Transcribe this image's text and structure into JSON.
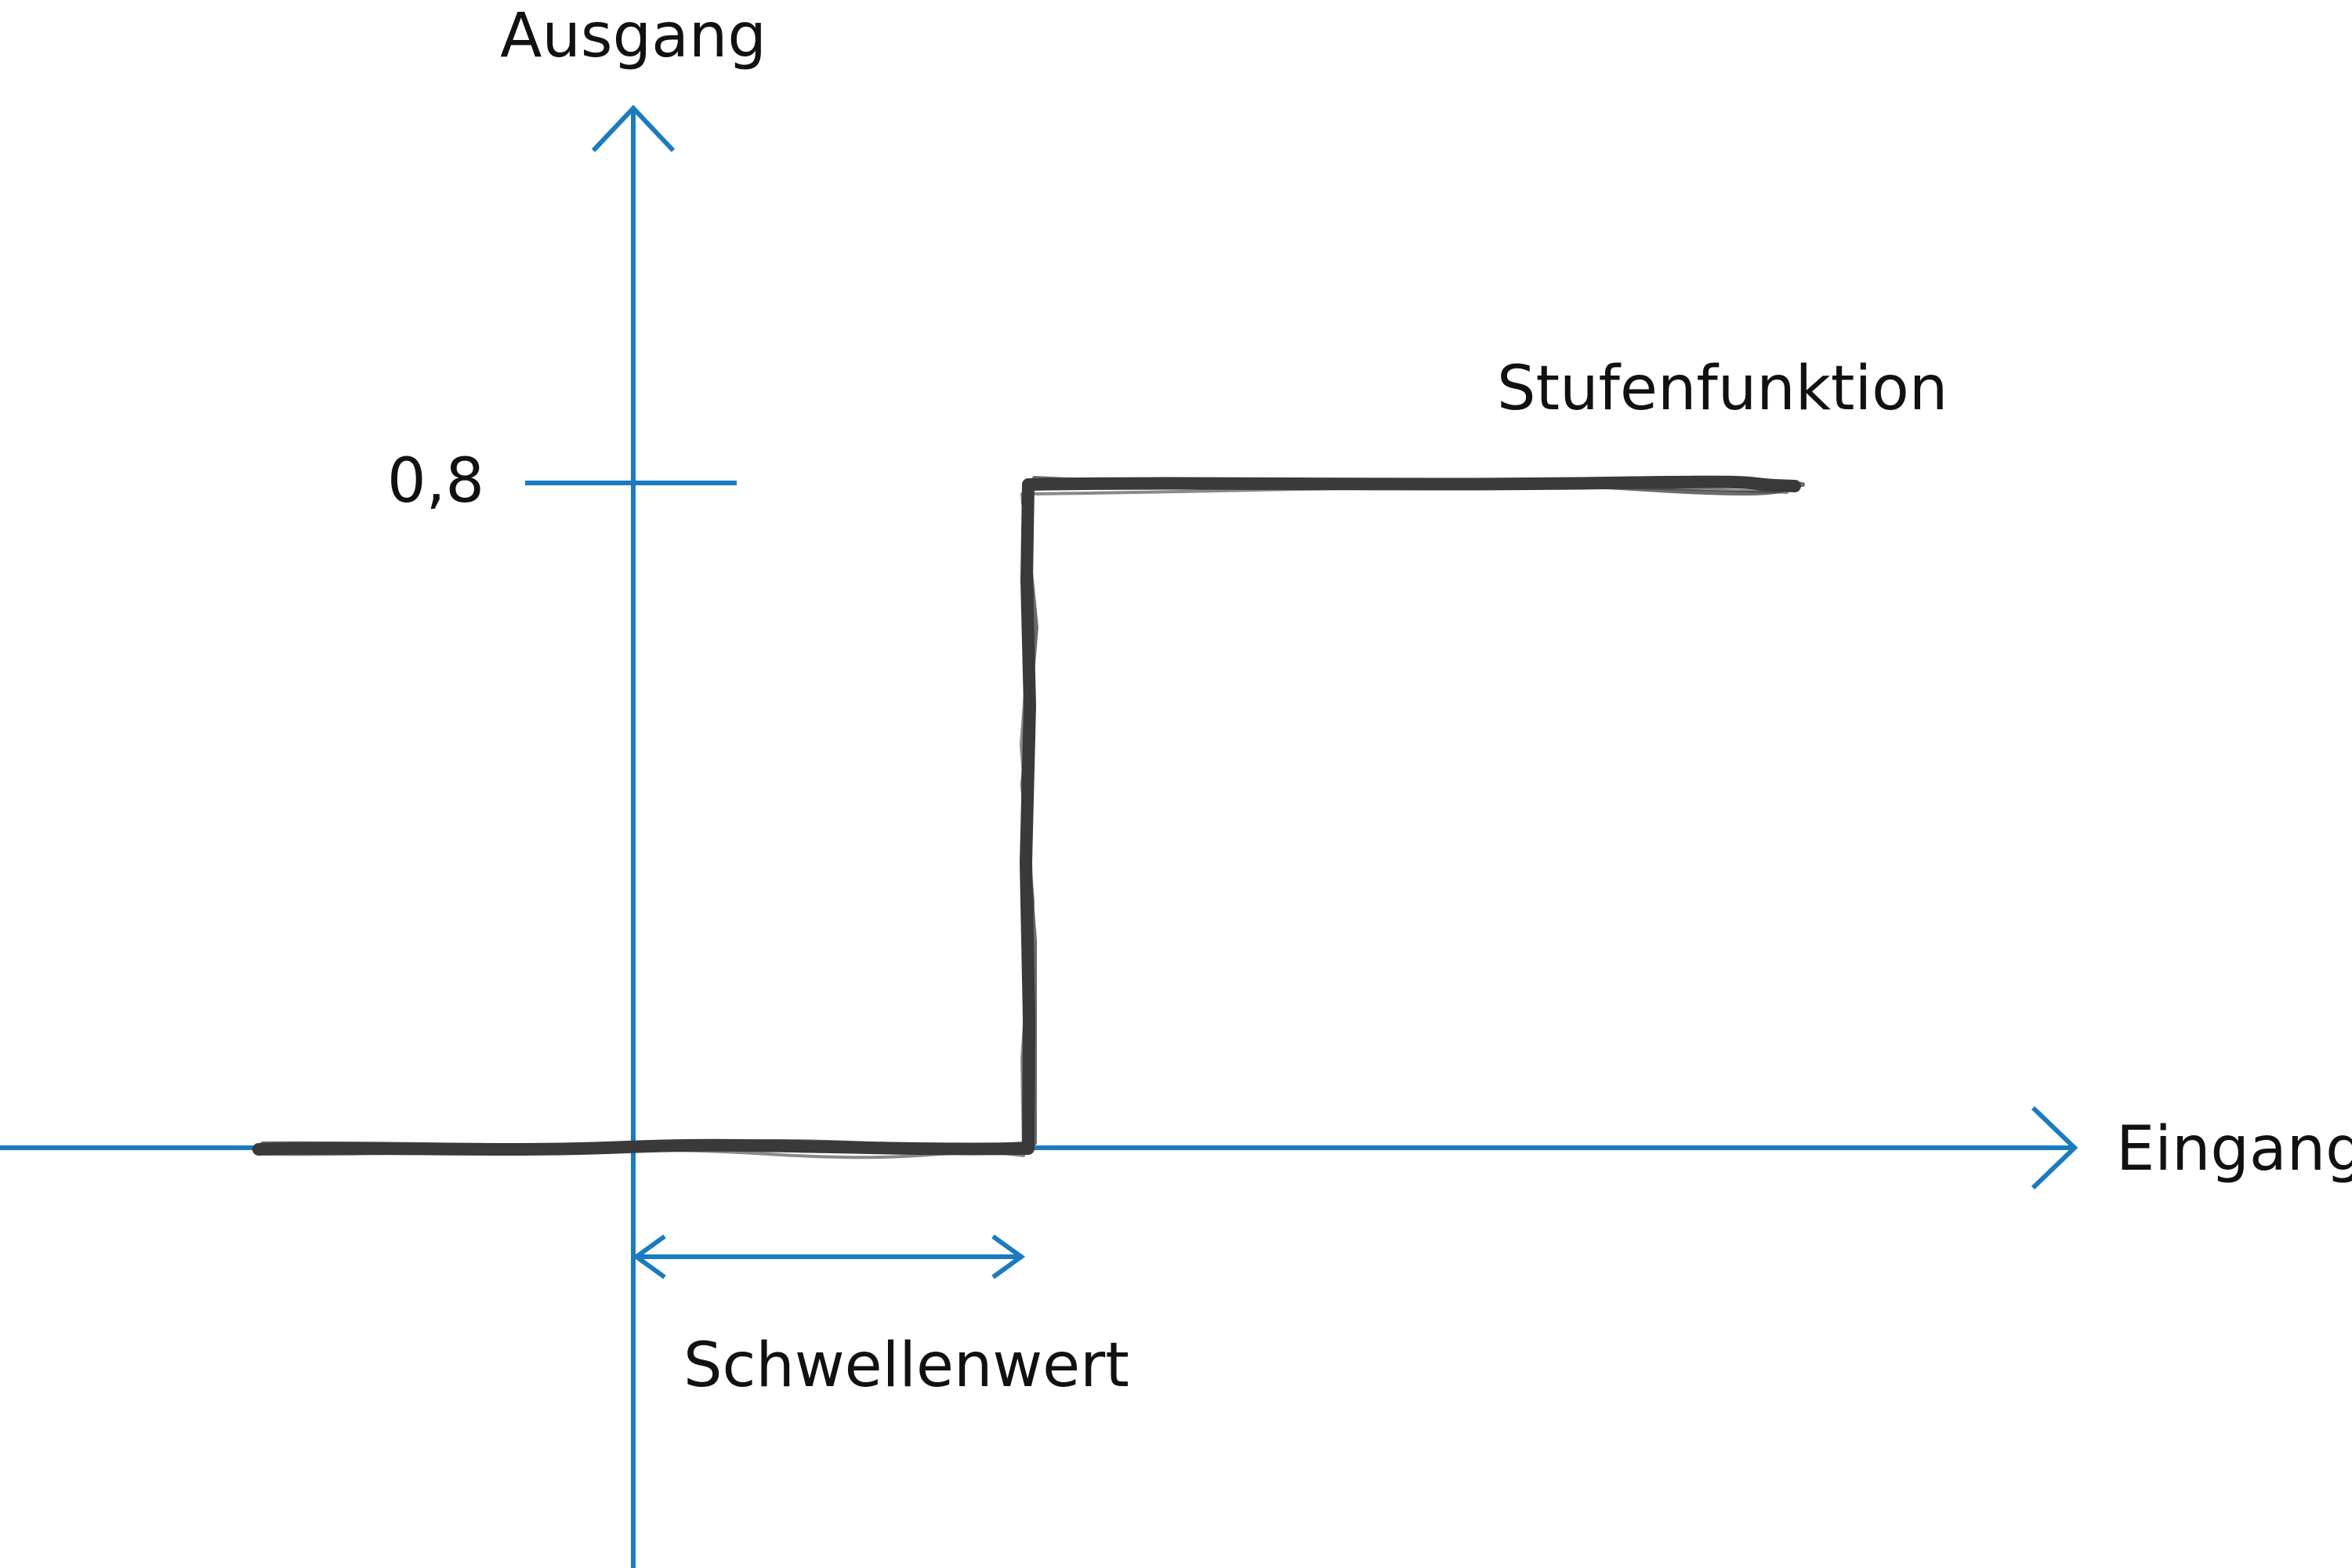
{
  "labels": {
    "y_axis": "Ausgang",
    "x_axis": "Eingang",
    "threshold": "Schwellenwert",
    "function": "Stufenfunktion",
    "y_tick": "0,8"
  },
  "colors": {
    "axis": "#1b7bc0",
    "curve": "#3a3a3a",
    "text": "#111111"
  },
  "step_function": {
    "low_value": 0,
    "high_value": 0.8
  }
}
